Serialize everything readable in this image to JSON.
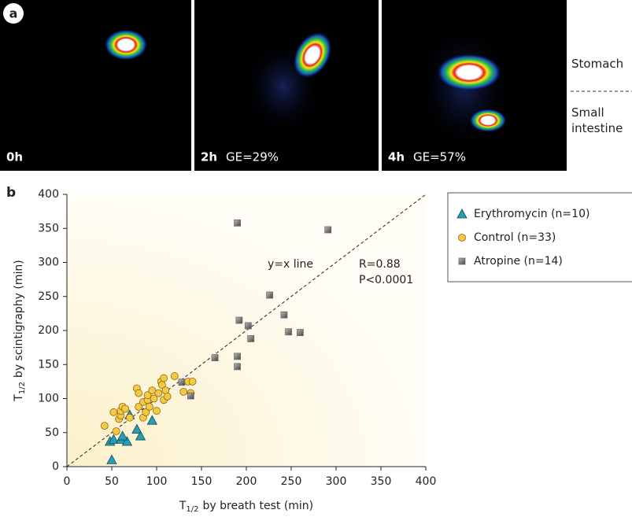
{
  "panels": {
    "a": {
      "label": "a",
      "images": [
        {
          "time": "0h"
        },
        {
          "time": "2h",
          "ge": "GE=29%"
        },
        {
          "time": "4h",
          "ge": "GE=57%"
        }
      ],
      "regions": [
        "Stomach",
        "Small",
        "intestine"
      ]
    }
  },
  "chart_data": {
    "type": "scatter",
    "panel_label": "b",
    "xlabel": {
      "text": "T",
      "sub": "1/2",
      "rest": "by breath test (min)"
    },
    "ylabel": {
      "text": "T",
      "sub": "1/2",
      "rest": "by scintigraphy (min)"
    },
    "xlim": [
      0,
      400
    ],
    "ylim": [
      0,
      400
    ],
    "xticks": [
      0,
      50,
      100,
      150,
      200,
      250,
      300,
      350,
      400
    ],
    "yticks": [
      0,
      50,
      100,
      150,
      200,
      250,
      300,
      350,
      400
    ],
    "annotations": [
      "y=x line",
      "R=0.88",
      "P<0.0001"
    ],
    "series": [
      {
        "name": "Erythromycin (n=10)",
        "color": "#2a9db5",
        "marker": "triangle",
        "x": [
          50,
          48,
          52,
          60,
          67,
          70,
          78,
          82,
          95,
          62
        ],
        "y": [
          10,
          37,
          40,
          40,
          37,
          76,
          55,
          45,
          68,
          45
        ]
      },
      {
        "name": "Control (n=33)",
        "color": "#f6c945",
        "marker": "circle",
        "x": [
          42,
          52,
          55,
          58,
          60,
          60,
          62,
          65,
          70,
          78,
          80,
          80,
          85,
          85,
          88,
          90,
          90,
          92,
          95,
          97,
          100,
          102,
          105,
          106,
          108,
          108,
          110,
          112,
          120,
          130,
          135,
          138,
          140
        ],
        "y": [
          60,
          80,
          52,
          70,
          75,
          82,
          88,
          85,
          72,
          115,
          108,
          88,
          95,
          72,
          80,
          98,
          105,
          88,
          112,
          100,
          82,
          108,
          125,
          120,
          130,
          98,
          112,
          103,
          133,
          110,
          125,
          108,
          125
        ]
      },
      {
        "name": "Atropine (n=14)",
        "color": "#6b6b6b",
        "marker": "square",
        "x": [
          128,
          138,
          165,
          190,
          190,
          190,
          192,
          202,
          205,
          226,
          242,
          247,
          260,
          291
        ],
        "y": [
          124,
          104,
          160,
          358,
          162,
          147,
          215,
          207,
          188,
          252,
          223,
          198,
          197,
          348
        ]
      }
    ]
  }
}
